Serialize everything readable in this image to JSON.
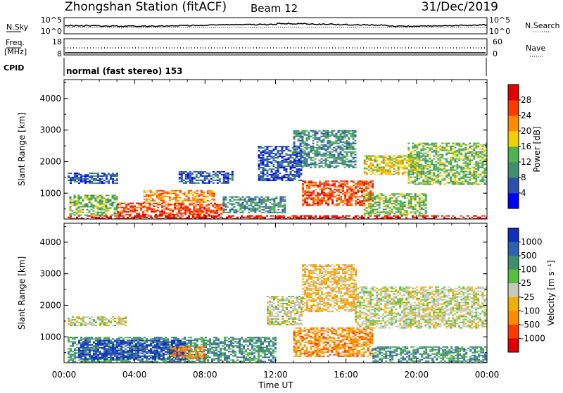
{
  "header": {
    "station": "Zhongshan Station (fitACF)",
    "beam": "Beam 12",
    "date": "31/Dec/2019"
  },
  "noise_panel": {
    "left_label": "N.Sky",
    "left_ticks": [
      "10^5",
      "10^0"
    ],
    "right_label": "N.Search",
    "right_ticks": [
      "10^5",
      "10^0"
    ]
  },
  "freq_panel": {
    "left_label_1": "Freq.",
    "left_label_2": "[MHz]",
    "left_ticks": [
      "18",
      "8"
    ],
    "right_label": "Nave",
    "right_ticks": [
      "60",
      "0"
    ],
    "cpid_label": "CPID"
  },
  "cpid_text": "normal (fast stereo) 153",
  "chart_data": [
    {
      "type": "heatmap",
      "name": "power",
      "ylabel": "Slant Range [km]",
      "ylim": [
        180,
        4600
      ],
      "yticks": [
        1000,
        2000,
        3000,
        4000
      ],
      "xlabel": "Time UT",
      "xlim": [
        0,
        24
      ],
      "xticks": [
        "00:00",
        "04:00",
        "08:00",
        "12:00",
        "16:00",
        "20:00",
        "00:00"
      ],
      "colorbar": {
        "label": "Power [dB]",
        "tick_labels": [
          "4",
          "8",
          "12",
          "16",
          "20",
          "24",
          "28"
        ],
        "colors": [
          "#0000ff",
          "#2b50b0",
          "#3f8f6f",
          "#4fb24f",
          "#f0d000",
          "#ff8c00",
          "#ff3a00",
          "#e00000"
        ]
      },
      "regions": [
        {
          "x": [
            0.2,
            24.0
          ],
          "y": [
            190,
            300
          ],
          "level": 7
        },
        {
          "x": [
            0.3,
            3.0
          ],
          "y": [
            300,
            950
          ],
          "level": 3
        },
        {
          "x": [
            3.0,
            9.0
          ],
          "y": [
            300,
            700
          ],
          "level": 6
        },
        {
          "x": [
            4.5,
            8.5
          ],
          "y": [
            700,
            1100
          ],
          "level": 5
        },
        {
          "x": [
            0.2,
            3.0
          ],
          "y": [
            1300,
            1650
          ],
          "level": 1
        },
        {
          "x": [
            9.0,
            12.5
          ],
          "y": [
            400,
            900
          ],
          "level": 2
        },
        {
          "x": [
            13.5,
            17.5
          ],
          "y": [
            600,
            1400
          ],
          "level": 6
        },
        {
          "x": [
            17.0,
            20.5
          ],
          "y": [
            300,
            1000
          ],
          "level": 3
        },
        {
          "x": [
            13.0,
            16.5
          ],
          "y": [
            1800,
            3000
          ],
          "level": 2
        },
        {
          "x": [
            17.0,
            20.0
          ],
          "y": [
            1600,
            2200
          ],
          "level": 4
        },
        {
          "x": [
            19.5,
            24.0
          ],
          "y": [
            1300,
            2600
          ],
          "level": 3
        },
        {
          "x": [
            11.0,
            13.5
          ],
          "y": [
            1400,
            2500
          ],
          "level": 1
        },
        {
          "x": [
            6.5,
            9.5
          ],
          "y": [
            1300,
            1700
          ],
          "level": 1
        }
      ]
    },
    {
      "type": "heatmap",
      "name": "velocity",
      "ylabel": "Slant Range [km]",
      "ylim": [
        180,
        4600
      ],
      "yticks": [
        1000,
        2000,
        3000,
        4000
      ],
      "xlabel": "Time UT",
      "xlim": [
        0,
        24
      ],
      "xticks": [
        "00:00",
        "04:00",
        "08:00",
        "12:00",
        "16:00",
        "20:00",
        "00:00"
      ],
      "colorbar": {
        "label": "Velocity [m s⁻¹]",
        "tick_labels": [
          "1000",
          "500",
          "100",
          "25",
          "-25",
          "-100",
          "-500",
          "-1000"
        ],
        "colors": [
          "#1030c0",
          "#3060b0",
          "#3f8f6f",
          "#55c040",
          "#c8c8c0",
          "#f0b000",
          "#ff8c00",
          "#ff3a00",
          "#e00000"
        ]
      },
      "regions": [
        {
          "x": [
            0.2,
            12.0
          ],
          "y": [
            190,
            1000
          ],
          "level": 2
        },
        {
          "x": [
            0.8,
            7.0
          ],
          "y": [
            300,
            900
          ],
          "level": 0
        },
        {
          "x": [
            6.0,
            8.0
          ],
          "y": [
            300,
            700
          ],
          "level": 6
        },
        {
          "x": [
            0.2,
            3.5
          ],
          "y": [
            1350,
            1650
          ],
          "level": 4
        },
        {
          "x": [
            13.0,
            17.5
          ],
          "y": [
            400,
            1300
          ],
          "level": 6
        },
        {
          "x": [
            13.5,
            16.5
          ],
          "y": [
            1800,
            3300
          ],
          "level": 5
        },
        {
          "x": [
            16.5,
            24.0
          ],
          "y": [
            1300,
            2600
          ],
          "level": 4
        },
        {
          "x": [
            17.5,
            24.0
          ],
          "y": [
            190,
            700
          ],
          "level": 2
        },
        {
          "x": [
            11.5,
            13.5
          ],
          "y": [
            1400,
            2300
          ],
          "level": 4
        }
      ]
    }
  ]
}
